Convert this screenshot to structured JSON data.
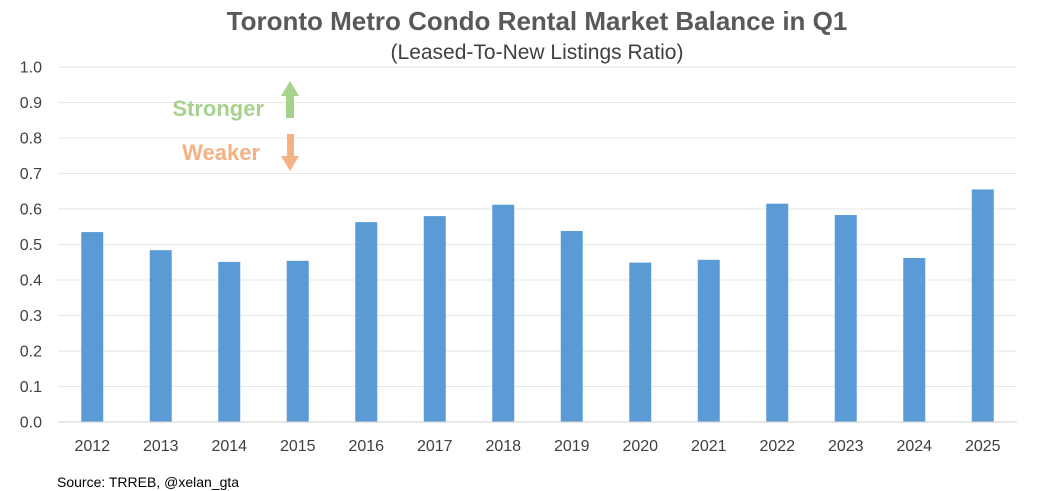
{
  "colors": {
    "bar": "#5b9bd5",
    "grid": "#e6e6e6",
    "axis": "#d0d0d0",
    "stronger": "#a9d18e",
    "weaker": "#f4b183"
  },
  "annotations": {
    "stronger_label": "Stronger",
    "weaker_label": "Weaker",
    "stronger_icon": "arrow-up-icon",
    "weaker_icon": "arrow-down-icon"
  },
  "source": "Source: TRREB, @xelan_gta",
  "chart_data": {
    "type": "bar",
    "title": "Toronto Metro Condo Rental Market Balance in Q1",
    "subtitle": "(Leased-To-New Listings Ratio)",
    "xlabel": "",
    "ylabel": "",
    "categories": [
      "2012",
      "2013",
      "2014",
      "2015",
      "2016",
      "2017",
      "2018",
      "2019",
      "2020",
      "2021",
      "2022",
      "2023",
      "2024",
      "2025"
    ],
    "values": [
      0.535,
      0.484,
      0.451,
      0.454,
      0.563,
      0.58,
      0.612,
      0.538,
      0.449,
      0.457,
      0.615,
      0.583,
      0.462,
      0.655
    ],
    "ylim": [
      0,
      1.0
    ],
    "yticks": [
      "0.0",
      "0.1",
      "0.2",
      "0.3",
      "0.4",
      "0.5",
      "0.6",
      "0.7",
      "0.8",
      "0.9",
      "1.0"
    ],
    "grid": true,
    "legend": "none"
  }
}
